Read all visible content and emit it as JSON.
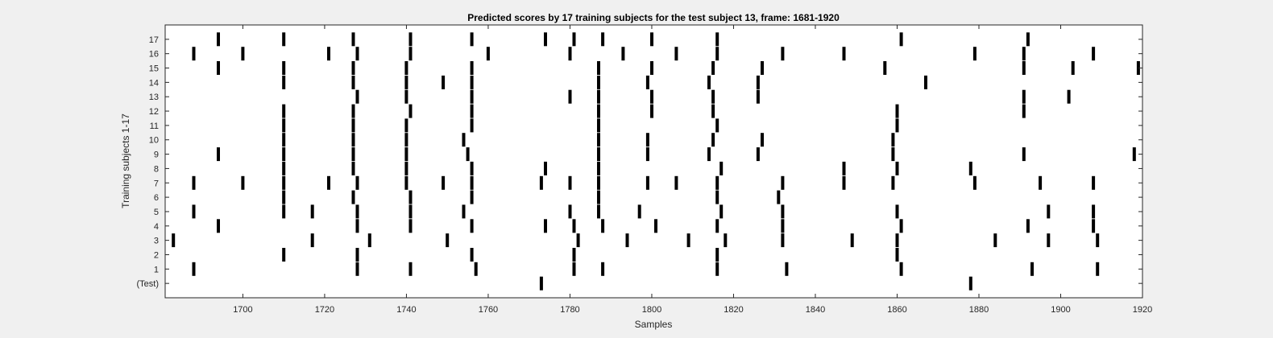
{
  "chart_data": {
    "type": "raster",
    "title": "Predicted scores by 17 training subjects for the test subject 13, frame: 1681-1920",
    "xlabel": "Samples",
    "ylabel": "Training subjects 1-17",
    "xlim": [
      1681,
      1920
    ],
    "xticks": [
      1700,
      1720,
      1740,
      1760,
      1780,
      1800,
      1820,
      1840,
      1860,
      1880,
      1900,
      1920
    ],
    "rows": [
      "(Test)",
      "1",
      "2",
      "3",
      "4",
      "5",
      "6",
      "7",
      "8",
      "9",
      "10",
      "11",
      "12",
      "13",
      "14",
      "15",
      "16",
      "17"
    ],
    "grid": false,
    "events": [
      [
        1773,
        1878
      ],
      [
        1688,
        1728,
        1741,
        1757,
        1781,
        1788,
        1816,
        1833,
        1861,
        1893,
        1909
      ],
      [
        1710,
        1728,
        1756,
        1781,
        1816,
        1860
      ],
      [
        1683,
        1717,
        1731,
        1750,
        1782,
        1794,
        1809,
        1818,
        1832,
        1849,
        1860,
        1884,
        1897,
        1909
      ],
      [
        1694,
        1728,
        1741,
        1756,
        1774,
        1781,
        1788,
        1801,
        1816,
        1832,
        1861,
        1892,
        1908
      ],
      [
        1688,
        1710,
        1717,
        1728,
        1741,
        1754,
        1780,
        1787,
        1797,
        1817,
        1832,
        1860,
        1897,
        1908
      ],
      [
        1710,
        1727,
        1741,
        1756,
        1787,
        1816,
        1831
      ],
      [
        1688,
        1700,
        1710,
        1721,
        1728,
        1740,
        1749,
        1756,
        1773,
        1780,
        1787,
        1799,
        1806,
        1816,
        1832,
        1847,
        1859,
        1879,
        1895,
        1908
      ],
      [
        1710,
        1727,
        1740,
        1756,
        1774,
        1787,
        1817,
        1847,
        1860,
        1878
      ],
      [
        1694,
        1710,
        1727,
        1740,
        1755,
        1787,
        1799,
        1814,
        1826,
        1859,
        1891,
        1918
      ],
      [
        1710,
        1727,
        1740,
        1754,
        1787,
        1799,
        1815,
        1827,
        1859
      ],
      [
        1710,
        1727,
        1740,
        1756,
        1787,
        1816,
        1860
      ],
      [
        1710,
        1727,
        1741,
        1756,
        1787,
        1800,
        1815,
        1860,
        1891
      ],
      [
        1728,
        1740,
        1756,
        1780,
        1787,
        1800,
        1815,
        1826,
        1891,
        1902
      ],
      [
        1710,
        1727,
        1740,
        1749,
        1756,
        1787,
        1799,
        1814,
        1826,
        1867
      ],
      [
        1694,
        1710,
        1727,
        1740,
        1756,
        1787,
        1800,
        1815,
        1827,
        1857,
        1891,
        1903,
        1919
      ],
      [
        1688,
        1700,
        1721,
        1728,
        1741,
        1760,
        1780,
        1793,
        1806,
        1816,
        1832,
        1847,
        1879,
        1891,
        1908
      ],
      [
        1694,
        1710,
        1727,
        1741,
        1756,
        1774,
        1781,
        1788,
        1800,
        1816,
        1861,
        1892
      ]
    ],
    "mark_color": "#000000",
    "background_color": "#ffffff",
    "figure_color": "#f0f0f0"
  }
}
